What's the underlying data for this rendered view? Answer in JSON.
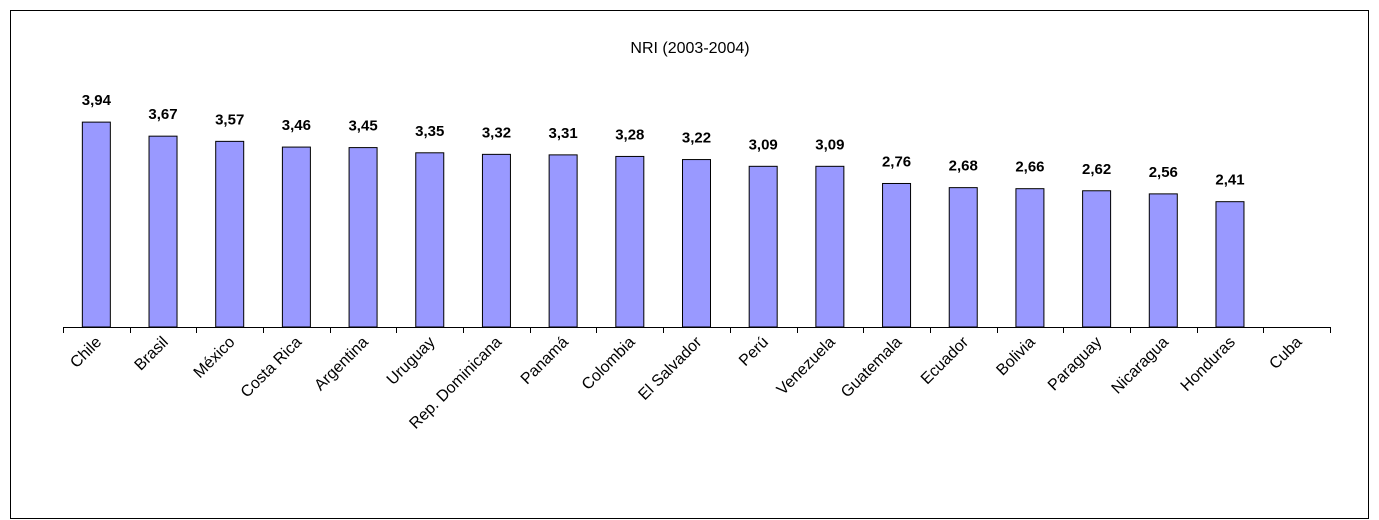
{
  "chart_data": {
    "type": "bar",
    "title": "NRI (2003-2004)",
    "categories": [
      "Chile",
      "Brasil",
      "México",
      "Costa Rica",
      "Argentina",
      "Uruguay",
      "Rep. Dominicana",
      "Panamá",
      "Colombia",
      "El Salvador",
      "Perú",
      "Venezuela",
      "Guatemala",
      "Ecuador",
      "Bolivia",
      "Paraguay",
      "Nicaragua",
      "Honduras",
      "Cuba"
    ],
    "values": [
      3.94,
      3.67,
      3.57,
      3.46,
      3.45,
      3.35,
      3.32,
      3.31,
      3.28,
      3.22,
      3.09,
      3.09,
      2.76,
      2.68,
      2.66,
      2.62,
      2.56,
      2.41,
      null
    ],
    "value_labels": [
      "3,94",
      "3,67",
      "3,57",
      "3,46",
      "3,45",
      "3,35",
      "3,32",
      "3,31",
      "3,28",
      "3,22",
      "3,09",
      "3,09",
      "2,76",
      "2,68",
      "2,66",
      "2,62",
      "2,56",
      "2,41",
      null
    ],
    "color": "#9999ff",
    "ylim": [
      0,
      5
    ]
  }
}
